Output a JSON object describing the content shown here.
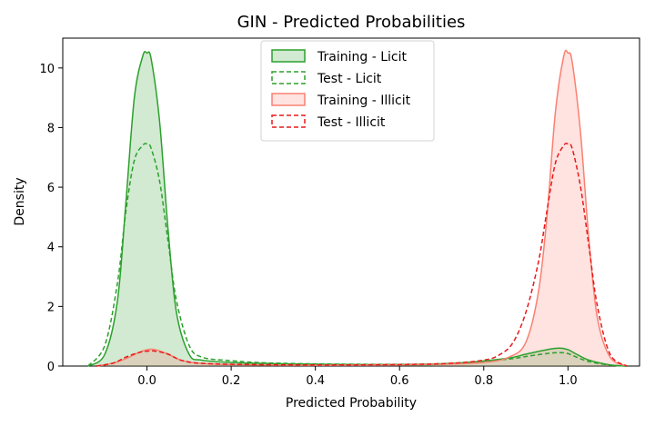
{
  "chart_data": {
    "type": "area",
    "title": "GIN - Predicted Probabilities",
    "xlabel": "Predicted Probability",
    "ylabel": "Density",
    "xlim": [
      -0.2,
      1.17
    ],
    "ylim": [
      0,
      11
    ],
    "xticks": [
      "0.0",
      "0.2",
      "0.4",
      "0.6",
      "0.8",
      "1.0"
    ],
    "yticks": [
      "0",
      "2",
      "4",
      "6",
      "8",
      "10"
    ],
    "legend_position": "top-center",
    "series": [
      {
        "name": "Training - Licit",
        "color": "#2ca02c",
        "linestyle": "solid",
        "filled": true,
        "x": [
          -0.14,
          -0.1,
          -0.07,
          -0.05,
          -0.03,
          -0.01,
          0.0,
          0.01,
          0.03,
          0.05,
          0.07,
          0.1,
          0.13,
          0.2,
          0.3,
          0.5,
          0.7,
          0.85,
          0.9,
          0.95,
          0.98,
          1.0,
          1.02,
          1.05,
          1.1,
          1.14
        ],
        "y": [
          0.0,
          0.4,
          2.2,
          5.5,
          9.0,
          10.4,
          10.5,
          10.3,
          8.2,
          4.6,
          1.8,
          0.4,
          0.2,
          0.12,
          0.08,
          0.05,
          0.06,
          0.25,
          0.4,
          0.55,
          0.6,
          0.55,
          0.4,
          0.2,
          0.04,
          0.0
        ]
      },
      {
        "name": "Test - Licit",
        "color": "#2ca02c",
        "linestyle": "dashed",
        "filled": false,
        "x": [
          -0.14,
          -0.1,
          -0.07,
          -0.05,
          -0.03,
          -0.01,
          0.0,
          0.01,
          0.03,
          0.05,
          0.07,
          0.1,
          0.13,
          0.2,
          0.3,
          0.5,
          0.7,
          0.85,
          0.9,
          0.95,
          0.98,
          1.0,
          1.02,
          1.05,
          1.1,
          1.14
        ],
        "y": [
          0.0,
          0.7,
          2.8,
          5.2,
          6.9,
          7.4,
          7.45,
          7.3,
          6.2,
          4.2,
          2.2,
          0.7,
          0.3,
          0.18,
          0.1,
          0.06,
          0.08,
          0.22,
          0.32,
          0.42,
          0.45,
          0.42,
          0.3,
          0.15,
          0.03,
          0.0
        ]
      },
      {
        "name": "Training - Illicit",
        "color": "#fa8072",
        "linestyle": "solid",
        "filled": true,
        "x": [
          -0.12,
          -0.08,
          -0.05,
          -0.02,
          0.0,
          0.02,
          0.05,
          0.08,
          0.12,
          0.2,
          0.35,
          0.5,
          0.7,
          0.8,
          0.86,
          0.9,
          0.93,
          0.95,
          0.97,
          0.99,
          1.0,
          1.01,
          1.03,
          1.05,
          1.07,
          1.1,
          1.14
        ],
        "y": [
          0.0,
          0.1,
          0.25,
          0.45,
          0.55,
          0.55,
          0.4,
          0.2,
          0.1,
          0.05,
          0.03,
          0.03,
          0.06,
          0.12,
          0.3,
          0.8,
          2.5,
          5.0,
          8.5,
          10.4,
          10.5,
          10.2,
          7.8,
          4.2,
          1.6,
          0.3,
          0.0
        ]
      },
      {
        "name": "Test - Illicit",
        "color": "#e8191b",
        "linestyle": "dashed",
        "filled": false,
        "x": [
          -0.12,
          -0.08,
          -0.05,
          -0.02,
          0.0,
          0.02,
          0.05,
          0.08,
          0.12,
          0.2,
          0.35,
          0.5,
          0.7,
          0.8,
          0.84,
          0.87,
          0.9,
          0.93,
          0.95,
          0.97,
          0.99,
          1.0,
          1.01,
          1.03,
          1.05,
          1.07,
          1.1,
          1.14
        ],
        "y": [
          0.0,
          0.1,
          0.3,
          0.45,
          0.5,
          0.5,
          0.4,
          0.2,
          0.1,
          0.06,
          0.04,
          0.04,
          0.08,
          0.2,
          0.4,
          0.8,
          1.8,
          3.5,
          5.2,
          6.8,
          7.4,
          7.45,
          7.3,
          6.0,
          4.0,
          2.0,
          0.4,
          0.0
        ]
      }
    ]
  }
}
